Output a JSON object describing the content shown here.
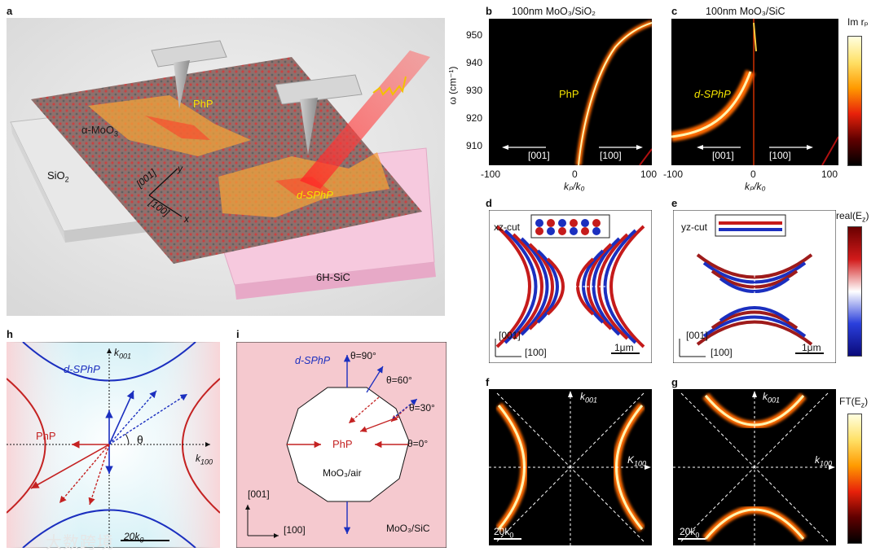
{
  "panels": {
    "a": {
      "label": "a",
      "phP": "PhP",
      "moo3": "α-MoO",
      "moo3_sub": "3",
      "sio2": "SiO",
      "sio2_sub": "2",
      "axis_001": "[001]",
      "axis_y": "y",
      "axis_100": "[100]",
      "axis_x": "x",
      "dsphp": "d-SPhP",
      "sic": "6H-SiC"
    },
    "b": {
      "label": "b",
      "title": "100nm MoO₃/SiO₂",
      "ylabel": "ω (cm⁻¹)",
      "xlabel": "kₚ/k₀",
      "yticks": [
        "950",
        "940",
        "930",
        "920",
        "910"
      ],
      "xticks": [
        "-100",
        "0",
        "100"
      ],
      "mode": "PhP",
      "dir_left": "[001]",
      "dir_right": "[100]"
    },
    "c": {
      "label": "c",
      "title": "100nm MoO₃/SiC",
      "xlabel": "kₚ/k₀",
      "xticks": [
        "-100",
        "0",
        "100"
      ],
      "mode": "d-SPhP",
      "dir_left": "[001]",
      "dir_right": "[100]",
      "cbar": "Im rₚ"
    },
    "d": {
      "label": "d",
      "cut": "xz-cut",
      "ax1": "[001]",
      "ax2": "[100]",
      "scale": "1μm"
    },
    "e": {
      "label": "e",
      "cut": "yz-cut",
      "ax1": "[001]",
      "ax2": "[100]",
      "scale": "1μm",
      "cbar": "real(E",
      "cbar_sub": "z",
      "cbar_end": ")"
    },
    "f": {
      "label": "f",
      "kv": "k",
      "kv_sub": "001",
      "kh": "K",
      "kh_sub": "100",
      "scale": "20k",
      "scale_sub": "0"
    },
    "g": {
      "label": "g",
      "kv": "k",
      "kv_sub": "001",
      "kh": "k",
      "kh_sub": "100",
      "scale": "20k",
      "scale_sub": "0",
      "cbar": "FT(E",
      "cbar_sub": "z",
      "cbar_end": ")"
    },
    "h": {
      "label": "h",
      "kv": "k",
      "kv_sub": "001",
      "kh": "k",
      "kh_sub": "100",
      "dsphp": "d-SPhP",
      "php": "PhP",
      "theta": "θ",
      "scale": "20k",
      "scale_sub": "0"
    },
    "i": {
      "label": "i",
      "dsphp": "d-SPhP",
      "th90": "θ=90°",
      "th60": "θ=60°",
      "th30": "θ=30°",
      "th0": "θ=0°",
      "php": "PhP",
      "moo3air": "MoO₃/air",
      "ax1": "[001]",
      "ax2": "[100]",
      "moo3sic": "MoO₃/SiC"
    }
  },
  "watermark": "大数跨境"
}
